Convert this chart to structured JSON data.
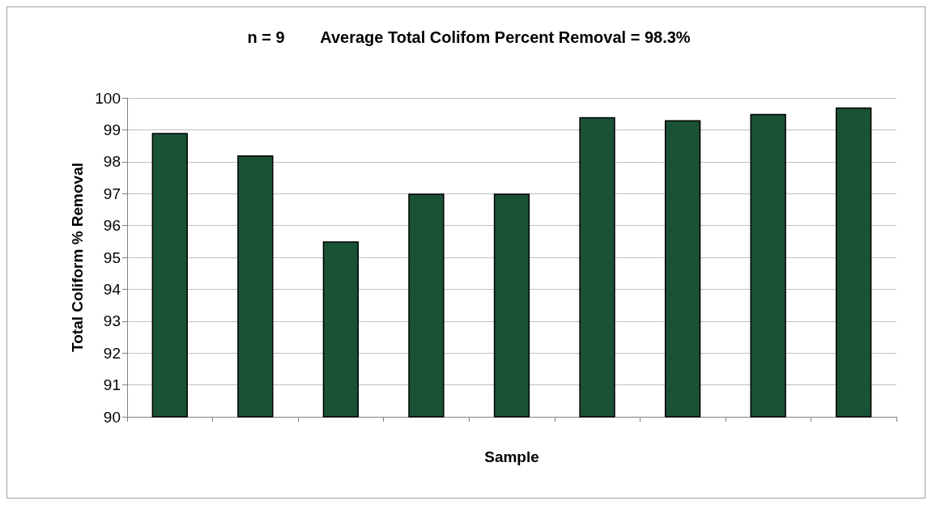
{
  "chart_data": {
    "type": "bar",
    "title": "n = 9        Average Total Colifom Percent Removal = 98.3%",
    "xlabel": "Sample",
    "ylabel": "Total Coliform % Removal",
    "categories": [
      null,
      null,
      null,
      null,
      null,
      null,
      null,
      null,
      null
    ],
    "values": [
      98.9,
      98.2,
      95.5,
      97.0,
      97.0,
      99.4,
      99.3,
      99.5,
      99.7
    ],
    "color": "#1a5236",
    "ylim": [
      90,
      100
    ],
    "yticks": [
      90,
      91,
      92,
      93,
      94,
      95,
      96,
      97,
      98,
      99,
      100
    ],
    "grid": "y"
  }
}
